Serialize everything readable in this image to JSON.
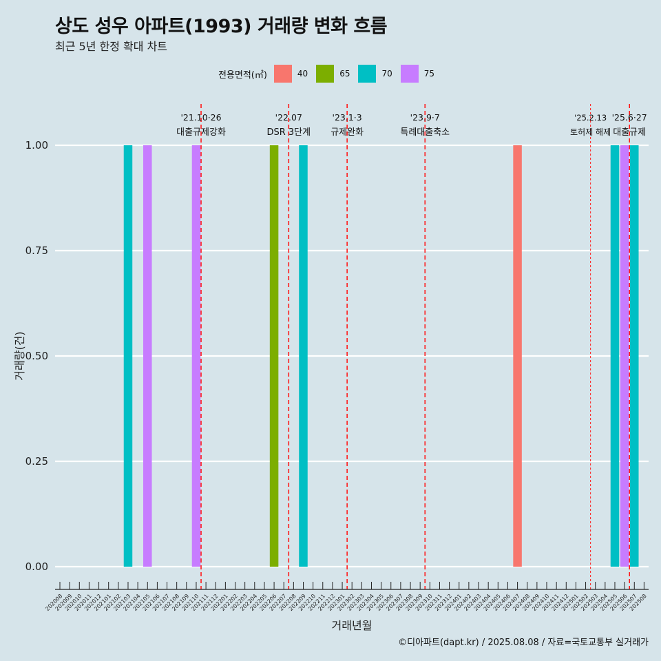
{
  "title": "상도 성우 아파트(1993) 거래량 변화 흐름",
  "subtitle": "최근 5년 한정 확대 차트",
  "caption": "©디아파트(dapt.kr) / 2025.08.08 / 자료=국토교통부 실거래가",
  "legend": {
    "title": "전용면적(㎡)",
    "items": [
      {
        "label": "40",
        "color": "#f8766d"
      },
      {
        "label": "65",
        "color": "#7cae00"
      },
      {
        "label": "70",
        "color": "#00bfc4"
      },
      {
        "label": "75",
        "color": "#c77cff"
      }
    ]
  },
  "chart_data": {
    "type": "bar",
    "xlabel": "거래년월",
    "ylabel": "거래량(건)",
    "ylim": [
      0,
      1
    ],
    "yticks": [
      "0.00",
      "0.25",
      "0.50",
      "0.75",
      "1.00"
    ],
    "categories": [
      "202008",
      "202009",
      "202010",
      "202011",
      "202012",
      "202101",
      "202102",
      "202103",
      "202104",
      "202105",
      "202106",
      "202107",
      "202108",
      "202109",
      "202110",
      "202111",
      "202112",
      "202201",
      "202202",
      "202203",
      "202204",
      "202205",
      "202206",
      "202207",
      "202208",
      "202209",
      "202210",
      "202211",
      "202212",
      "202301",
      "202302",
      "202303",
      "202304",
      "202305",
      "202306",
      "202307",
      "202308",
      "202309",
      "202310",
      "202311",
      "202312",
      "202401",
      "202402",
      "202403",
      "202404",
      "202405",
      "202406",
      "202407",
      "202408",
      "202409",
      "202410",
      "202411",
      "202412",
      "202501",
      "202502",
      "202503",
      "202504",
      "202505",
      "202506",
      "202507",
      "202508"
    ],
    "bars": [
      {
        "month": "202103",
        "area": "70",
        "value": 1
      },
      {
        "month": "202105",
        "area": "75",
        "value": 1
      },
      {
        "month": "202110",
        "area": "75",
        "value": 1
      },
      {
        "month": "202206",
        "area": "65",
        "value": 1
      },
      {
        "month": "202209",
        "area": "70",
        "value": 1
      },
      {
        "month": "202407",
        "area": "40",
        "value": 1
      },
      {
        "month": "202505",
        "area": "70",
        "value": 1
      },
      {
        "month": "202506",
        "area": "75",
        "value": 1
      },
      {
        "month": "202507",
        "area": "70",
        "value": 1
      }
    ],
    "events": [
      {
        "month": "202110",
        "date": "'21.10·26",
        "label": "대출규제강화",
        "style": "dashed"
      },
      {
        "month": "202207",
        "date": "'22.07",
        "label": "DSR 3단계",
        "style": "dashed"
      },
      {
        "month": "202301",
        "date": "'23.1·3",
        "label": "규제완화",
        "style": "dashed"
      },
      {
        "month": "202309",
        "date": "'23.9·7",
        "label": "특례대출축소",
        "style": "dashed"
      },
      {
        "month": "202502",
        "date": "'25.2.13",
        "label": "토허제 해제",
        "style": "dotted"
      },
      {
        "month": "202506",
        "date": "'25.6·27",
        "label": "대출규제",
        "style": "dashed"
      }
    ]
  }
}
